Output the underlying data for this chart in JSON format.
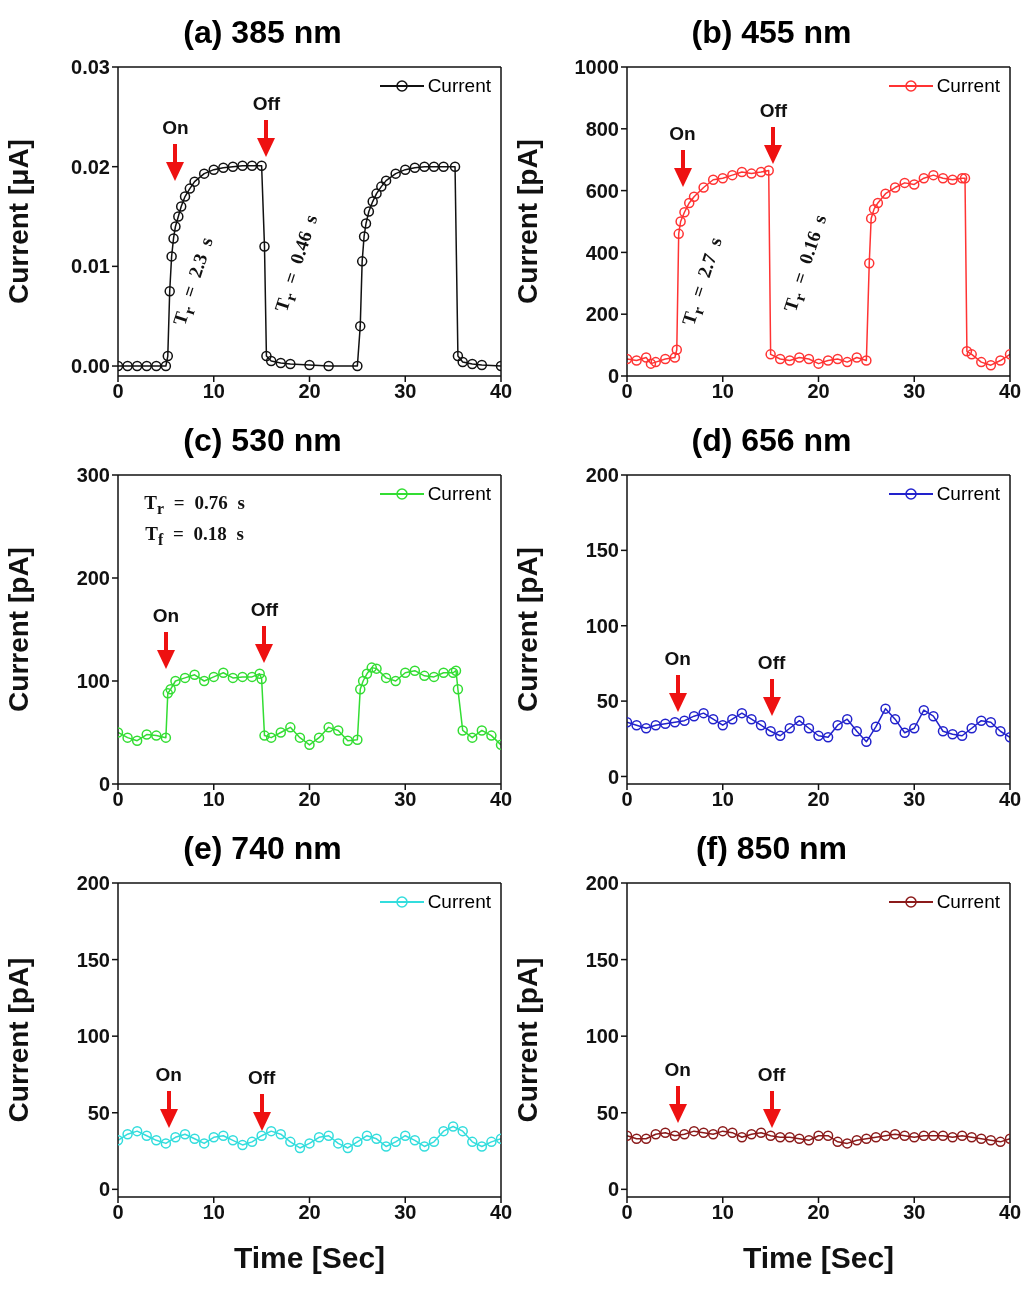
{
  "chart_data": [
    {
      "type": "line",
      "title": "(a) 385 nm",
      "ylabel": "Current [μA]",
      "xlim": [
        0,
        40
      ],
      "xticks": [
        0,
        10,
        20,
        30,
        40
      ],
      "ylim": [
        -0.001,
        0.03
      ],
      "yticks": [
        {
          "value": 0,
          "label": "0.00"
        },
        {
          "value": 0.01,
          "label": "0.01"
        },
        {
          "value": 0.02,
          "label": "0.02"
        },
        {
          "value": 0.03,
          "label": "0.03"
        }
      ],
      "legend": "top right",
      "marker": "circle",
      "line_style": "solid",
      "x": [
        0,
        1,
        2,
        3,
        4,
        5,
        5.2,
        5.4,
        5.6,
        5.8,
        6,
        6.3,
        6.6,
        7,
        7.5,
        8,
        9,
        10,
        11,
        12,
        13,
        14,
        15,
        15.3,
        15.5,
        16,
        17,
        18,
        20,
        22,
        25,
        25.3,
        25.5,
        25.7,
        25.9,
        26.2,
        26.6,
        27,
        27.5,
        28,
        29,
        30,
        31,
        32,
        33,
        34,
        35.2,
        35.5,
        36,
        37,
        38,
        40
      ],
      "series": [
        {
          "name": "Current",
          "color": "#111111",
          "values": [
            0,
            0,
            0,
            0,
            0,
            0,
            0.001,
            0.0075,
            0.011,
            0.0128,
            0.014,
            0.015,
            0.016,
            0.017,
            0.0178,
            0.0185,
            0.0193,
            0.0197,
            0.0199,
            0.02,
            0.0201,
            0.0201,
            0.0201,
            0.012,
            0.001,
            0.0005,
            0.0003,
            0.0002,
            0.0001,
            0,
            0,
            0.004,
            0.0105,
            0.013,
            0.0143,
            0.0155,
            0.0165,
            0.0173,
            0.018,
            0.0186,
            0.0193,
            0.0197,
            0.0199,
            0.02,
            0.02,
            0.02,
            0.02,
            0.001,
            0.0004,
            0.0002,
            0.0001,
            0
          ]
        }
      ],
      "annotations": [
        "On",
        "Off",
        "T$_{r}$ = 2.3 s",
        "T$_{r}$ = 0.46 s"
      ]
    },
    {
      "type": "line",
      "title": "(b) 455 nm",
      "ylabel": "Current [pA]",
      "xlim": [
        0,
        40
      ],
      "xticks": [
        0,
        10,
        20,
        30,
        40
      ],
      "ylim": [
        0,
        1000
      ],
      "yticks": [
        0,
        200,
        400,
        600,
        800,
        1000
      ],
      "legend": "top right",
      "marker": "circle",
      "line_style": "solid",
      "x": [
        0,
        1,
        2,
        2.5,
        3,
        4,
        5,
        5.2,
        5.4,
        5.6,
        6,
        6.5,
        7,
        8,
        9,
        10,
        11,
        12,
        13,
        14,
        14.8,
        15,
        16,
        17,
        18,
        19,
        20,
        21,
        22,
        23,
        24,
        25,
        25.3,
        25.5,
        25.8,
        26.2,
        27,
        28,
        29,
        30,
        31,
        32,
        33,
        34,
        35,
        35.3,
        35.5,
        36,
        37,
        38,
        39,
        40
      ],
      "series": [
        {
          "name": "Current",
          "color": "#ff3333",
          "values": [
            55,
            50,
            60,
            40,
            45,
            55,
            60,
            85,
            460,
            500,
            530,
            560,
            580,
            610,
            635,
            640,
            650,
            660,
            655,
            660,
            665,
            70,
            55,
            50,
            60,
            55,
            40,
            50,
            55,
            45,
            60,
            50,
            365,
            510,
            540,
            560,
            590,
            610,
            625,
            620,
            640,
            650,
            640,
            635,
            640,
            640,
            80,
            70,
            45,
            35,
            50,
            70
          ]
        }
      ],
      "annotations": [
        "On",
        "Off",
        "T$_{r}$ = 2.7 s",
        "T$_{r}$ = 0.16 s"
      ]
    },
    {
      "type": "line",
      "title": "(c) 530 nm",
      "ylabel": "Current [pA]",
      "xlim": [
        0,
        40
      ],
      "xticks": [
        0,
        10,
        20,
        30,
        40
      ],
      "ylim": [
        0,
        300
      ],
      "yticks": [
        0,
        100,
        200,
        300
      ],
      "legend": "top right",
      "marker": "circle",
      "line_style": "solid",
      "x": [
        0,
        1,
        2,
        3,
        4,
        5,
        5.2,
        5.5,
        6,
        7,
        8,
        9,
        10,
        11,
        12,
        13,
        14,
        14.8,
        15,
        15.3,
        16,
        17,
        18,
        19,
        20,
        21,
        22,
        23,
        24,
        25,
        25.3,
        25.6,
        26,
        26.5,
        27,
        28,
        29,
        30,
        31,
        32,
        33,
        34,
        35,
        35.3,
        35.5,
        36,
        37,
        38,
        39,
        40
      ],
      "series": [
        {
          "name": "Current",
          "color": "#33dd33",
          "values": [
            50,
            45,
            42,
            48,
            47,
            45,
            88,
            92,
            100,
            103,
            106,
            100,
            104,
            108,
            103,
            104,
            104,
            107,
            102,
            47,
            45,
            50,
            55,
            45,
            38,
            45,
            55,
            52,
            42,
            43,
            92,
            100,
            107,
            113,
            112,
            103,
            100,
            108,
            110,
            105,
            104,
            108,
            108,
            110,
            92,
            52,
            45,
            52,
            47,
            38
          ]
        }
      ],
      "annotations": [
        "On",
        "Off",
        "T$_{r}$ = 0.76 s",
        "T$_{f}$ = 0.18 s"
      ]
    },
    {
      "type": "line",
      "title": "(d) 656 nm",
      "ylabel": "Current [pA]",
      "xlim": [
        0,
        40
      ],
      "xticks": [
        0,
        10,
        20,
        30,
        40
      ],
      "ylim": [
        -5,
        200
      ],
      "yticks": [
        0,
        50,
        100,
        150,
        200
      ],
      "legend": "top right",
      "marker": "circle",
      "line_style": "solid",
      "x": [
        0,
        1,
        2,
        3,
        4,
        5,
        6,
        7,
        8,
        9,
        10,
        11,
        12,
        13,
        14,
        15,
        16,
        17,
        18,
        19,
        20,
        21,
        22,
        23,
        24,
        25,
        26,
        27,
        28,
        29,
        30,
        31,
        32,
        33,
        34,
        35,
        36,
        37,
        38,
        39,
        40
      ],
      "series": [
        {
          "name": "Current",
          "color": "#2222cc",
          "values": [
            36,
            34,
            32,
            34,
            35,
            36,
            37,
            40,
            42,
            38,
            34,
            38,
            42,
            38,
            34,
            30,
            27,
            32,
            37,
            32,
            27,
            26,
            34,
            38,
            30,
            23,
            33,
            45,
            38,
            29,
            32,
            44,
            40,
            30,
            28,
            27,
            32,
            37,
            36,
            30,
            26
          ]
        }
      ],
      "annotations": [
        "On",
        "Off"
      ]
    },
    {
      "type": "line",
      "title": "(e) 740 nm",
      "xlabel": "Time [Sec]",
      "ylabel": "Current [pA]",
      "xlim": [
        0,
        40
      ],
      "xticks": [
        0,
        10,
        20,
        30,
        40
      ],
      "ylim": [
        -5,
        200
      ],
      "yticks": [
        0,
        50,
        100,
        150,
        200
      ],
      "legend": "top right",
      "marker": "circle",
      "line_style": "solid",
      "x": [
        0,
        1,
        2,
        3,
        4,
        5,
        6,
        7,
        8,
        9,
        10,
        11,
        12,
        13,
        14,
        15,
        16,
        17,
        18,
        19,
        20,
        21,
        22,
        23,
        24,
        25,
        26,
        27,
        28,
        29,
        30,
        31,
        32,
        33,
        34,
        35,
        36,
        37,
        38,
        39,
        40
      ],
      "series": [
        {
          "name": "Current",
          "color": "#33dddd",
          "values": [
            32,
            36,
            38,
            35,
            32,
            30,
            34,
            36,
            33,
            30,
            34,
            35,
            32,
            29,
            31,
            35,
            38,
            36,
            31,
            27,
            30,
            34,
            35,
            30,
            27,
            31,
            35,
            33,
            28,
            31,
            35,
            32,
            28,
            31,
            38,
            41,
            38,
            31,
            28,
            31,
            33
          ]
        }
      ],
      "annotations": [
        "On",
        "Off"
      ]
    },
    {
      "type": "line",
      "title": "(f) 850 nm",
      "xlabel": "Time [Sec]",
      "ylabel": "Current [pA]",
      "xlim": [
        0,
        40
      ],
      "xticks": [
        0,
        10,
        20,
        30,
        40
      ],
      "ylim": [
        -5,
        200
      ],
      "yticks": [
        0,
        50,
        100,
        150,
        200
      ],
      "legend": "top right",
      "marker": "circle",
      "line_style": "solid",
      "x": [
        0,
        1,
        2,
        3,
        4,
        5,
        6,
        7,
        8,
        9,
        10,
        11,
        12,
        13,
        14,
        15,
        16,
        17,
        18,
        19,
        20,
        21,
        22,
        23,
        24,
        25,
        26,
        27,
        28,
        29,
        30,
        31,
        32,
        33,
        34,
        35,
        36,
        37,
        38,
        39,
        40
      ],
      "series": [
        {
          "name": "Current",
          "color": "#8b1a1a",
          "values": [
            35,
            33,
            33,
            36,
            37,
            35,
            36,
            38,
            37,
            36,
            38,
            37,
            34,
            36,
            37,
            35,
            34,
            34,
            33,
            32,
            35,
            35,
            31,
            30,
            32,
            33,
            34,
            35,
            36,
            35,
            34,
            35,
            35,
            35,
            34,
            35,
            34,
            33,
            32,
            31,
            33
          ]
        }
      ],
      "annotations": [
        "On",
        "Off"
      ]
    }
  ]
}
